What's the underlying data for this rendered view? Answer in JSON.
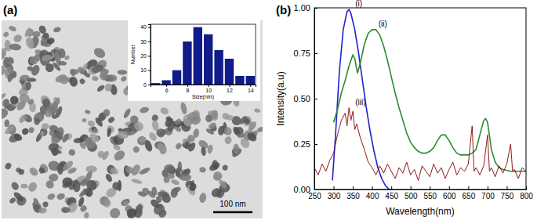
{
  "image_panel": {
    "label": "(a)",
    "scale_bar": "100 nm"
  },
  "chart_data": [
    {
      "type": "bar",
      "x_label": "Size(nm)",
      "y_label": "Number",
      "x": [
        5,
        6,
        7,
        8,
        9,
        10,
        11,
        12,
        13,
        14
      ],
      "values": [
        1,
        3,
        10,
        30,
        40,
        35,
        24,
        18,
        6,
        6
      ],
      "color": "#101c8a",
      "xlim": [
        4.5,
        14.5
      ],
      "xticks": [
        6,
        8,
        10,
        12,
        14
      ],
      "ylim": [
        0,
        42
      ],
      "yticks": [
        0,
        10,
        20,
        30,
        40
      ]
    },
    {
      "type": "line",
      "title": "(b)",
      "x_label": "Wavelength(nm)",
      "y_label": "Intensity(a.u)",
      "xlim": [
        250,
        800
      ],
      "xticks": [
        250,
        300,
        350,
        400,
        450,
        500,
        550,
        600,
        650,
        700,
        750,
        800
      ],
      "ylim": [
        0,
        1.0
      ],
      "yticks": [
        {
          "value": 0,
          "label": "0.00"
        },
        {
          "value": 0.25,
          "label": "0.25"
        },
        {
          "value": 0.5,
          "label": "0.50"
        },
        {
          "value": 0.75,
          "label": "0.75"
        },
        {
          "value": 1.0,
          "label": "1.00"
        }
      ],
      "series": [
        {
          "name": "(i)",
          "color": "#2020d0",
          "x": [
            297,
            305,
            315,
            325,
            335,
            340,
            345,
            355,
            365,
            375,
            385,
            395,
            405,
            415,
            425,
            435,
            445
          ],
          "values": [
            0.05,
            0.3,
            0.65,
            0.88,
            0.98,
            0.99,
            0.97,
            0.88,
            0.75,
            0.6,
            0.45,
            0.32,
            0.21,
            0.12,
            0.06,
            0.02,
            0.0
          ]
        },
        {
          "name": "(ii)",
          "color": "#2e8b2e",
          "x": [
            300,
            310,
            320,
            330,
            340,
            350,
            355,
            362,
            370,
            380,
            390,
            400,
            410,
            420,
            430,
            440,
            450,
            460,
            470,
            480,
            490,
            500,
            510,
            520,
            530,
            540,
            550,
            560,
            570,
            580,
            590,
            600,
            610,
            620,
            630,
            640,
            650,
            660,
            670,
            680,
            690,
            695,
            700,
            710,
            720,
            730,
            740,
            760,
            780,
            800
          ],
          "values": [
            0.37,
            0.44,
            0.53,
            0.6,
            0.68,
            0.74,
            0.72,
            0.64,
            0.7,
            0.8,
            0.86,
            0.88,
            0.88,
            0.85,
            0.79,
            0.71,
            0.62,
            0.53,
            0.45,
            0.38,
            0.31,
            0.26,
            0.23,
            0.21,
            0.2,
            0.2,
            0.21,
            0.23,
            0.27,
            0.3,
            0.3,
            0.27,
            0.23,
            0.2,
            0.19,
            0.19,
            0.19,
            0.2,
            0.22,
            0.3,
            0.38,
            0.39,
            0.37,
            0.22,
            0.15,
            0.12,
            0.11,
            0.1,
            0.1,
            0.1
          ]
        },
        {
          "name": "(iii)",
          "color": "#8b1a1a",
          "x": [
            250,
            260,
            270,
            280,
            290,
            300,
            310,
            320,
            330,
            335,
            340,
            345,
            350,
            355,
            360,
            370,
            380,
            390,
            400,
            410,
            420,
            430,
            440,
            450,
            460,
            470,
            480,
            490,
            500,
            510,
            520,
            530,
            540,
            550,
            560,
            570,
            580,
            590,
            600,
            610,
            620,
            630,
            640,
            650,
            660,
            665,
            670,
            680,
            690,
            700,
            705,
            710,
            720,
            730,
            740,
            750,
            760,
            765,
            770,
            780,
            790,
            800
          ],
          "values": [
            0.12,
            0.08,
            0.14,
            0.1,
            0.16,
            0.2,
            0.3,
            0.38,
            0.42,
            0.35,
            0.45,
            0.38,
            0.43,
            0.33,
            0.36,
            0.28,
            0.22,
            0.15,
            0.12,
            0.08,
            0.13,
            0.09,
            0.14,
            0.1,
            0.06,
            0.12,
            0.09,
            0.15,
            0.08,
            0.11,
            0.05,
            0.13,
            0.1,
            0.07,
            0.14,
            0.09,
            0.12,
            0.06,
            0.11,
            0.15,
            0.08,
            0.12,
            0.1,
            0.14,
            0.35,
            0.1,
            0.12,
            0.08,
            0.13,
            0.3,
            0.1,
            0.12,
            0.07,
            0.13,
            0.09,
            0.14,
            0.25,
            0.1,
            0.11,
            0.06,
            0.12,
            0.1
          ]
        }
      ]
    }
  ]
}
